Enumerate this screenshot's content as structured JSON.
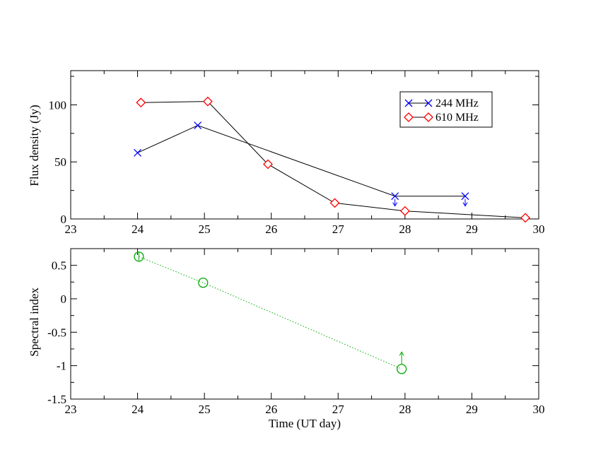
{
  "chart_data": [
    {
      "type": "line",
      "panel": "top",
      "xlabel": "",
      "ylabel": "Flux density (Jy)",
      "xlim": [
        23,
        30
      ],
      "ylim": [
        0,
        130
      ],
      "xticks": [
        "23",
        "24",
        "25",
        "26",
        "27",
        "28",
        "29",
        "30"
      ],
      "yticks": [
        "0",
        "50",
        "100"
      ],
      "legend_position": "top-right",
      "series": [
        {
          "name": "244 MHz",
          "color": "#0000ff",
          "marker": "x",
          "line_color": "#000000",
          "line_style": "solid",
          "x": [
            24.0,
            24.9,
            27.85,
            28.9
          ],
          "y": [
            58,
            82,
            20,
            20
          ],
          "upper_limit": [
            false,
            false,
            true,
            true
          ]
        },
        {
          "name": "610 MHz",
          "color": "#ff0000",
          "marker": "diamond",
          "line_color": "#000000",
          "line_style": "solid",
          "x": [
            24.05,
            25.05,
            25.95,
            26.95,
            28.0,
            29.8
          ],
          "y": [
            102,
            103,
            48,
            14,
            7,
            1
          ],
          "upper_limit": [
            false,
            false,
            false,
            false,
            false,
            false
          ]
        }
      ]
    },
    {
      "type": "line",
      "panel": "bottom",
      "xlabel": "Time (UT day)",
      "ylabel": "Spectral index",
      "xlim": [
        23,
        30
      ],
      "ylim": [
        -1.5,
        0.75
      ],
      "xticks": [
        "23",
        "24",
        "25",
        "26",
        "27",
        "28",
        "29",
        "30"
      ],
      "yticks": [
        "-1.5",
        "-1",
        "-0.5",
        "0",
        "0.5"
      ],
      "series": [
        {
          "color": "#00aa00",
          "marker": "circle",
          "line_style": "dotted",
          "x": [
            24.02,
            24.98,
            27.95
          ],
          "y": [
            0.63,
            0.24,
            -1.05
          ],
          "lower_limit": [
            false,
            false,
            true
          ]
        }
      ]
    }
  ]
}
